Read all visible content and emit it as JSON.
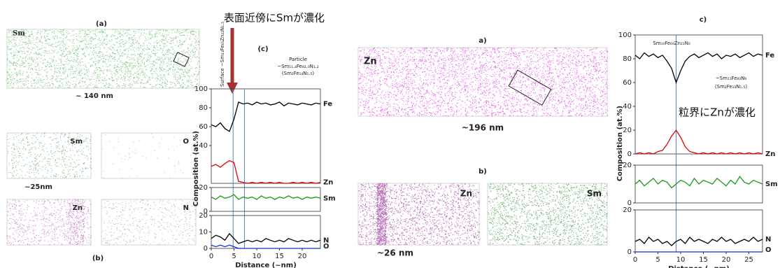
{
  "figure_left": {
    "map_label": "Sm",
    "map_panel": "(a)",
    "map_size": "~ 140 nm",
    "maps": [
      "Sm",
      "O",
      "Zn",
      "N"
    ],
    "maps_size": "~25nm",
    "maps_panel": "(b)",
    "chart_panel": "(c)",
    "surface_note": "Surface ~Sm₁₁Fe₆₅Zn₂₂N₁.₅",
    "particle_title": "Particle",
    "particle_formula": "~Sm₁₁.₄Fe₈₂.₀N₁.₂",
    "particle_ratio": "(Sm₂Fe₁₄N₁.₅)",
    "callout": "表面近傍にSmが濃化"
  },
  "figure_right": {
    "map_label": "Zn",
    "map_panel": "a)",
    "map_size": "~196 nm",
    "maps": [
      "Zn",
      "Sm"
    ],
    "maps_size": "~26 nm",
    "maps_panel": "b)",
    "chart_panel": "c)",
    "gb_formula": "Sm₁₀Fe₆₉Zn₂₁N₀",
    "matrix_formula": "~Sm₁₁Fe₈₃N₆",
    "matrix_ratio": "(Sm₂Fe₁₃N₁.₅)",
    "callout": "粒界にZnが濃化"
  },
  "chart_data": [
    {
      "type": "line",
      "xlim": [
        0,
        24
      ],
      "ylim": [
        0,
        100
      ],
      "yticks": [
        40,
        60,
        80,
        100
      ],
      "markers": [
        4.8,
        7.3
      ],
      "x": [
        0,
        1,
        2,
        3,
        4,
        5,
        6,
        7,
        8,
        9,
        10,
        11,
        12,
        13,
        14,
        15,
        16,
        17,
        18,
        19,
        20,
        21,
        22,
        23,
        24
      ],
      "series": [
        {
          "name": "Fe",
          "color": "#000000",
          "values": [
            62,
            60,
            64,
            58,
            55,
            68,
            86,
            84,
            85,
            83,
            86,
            84,
            85,
            83,
            84,
            86,
            82,
            85,
            84,
            83,
            85,
            84,
            83,
            85,
            84
          ]
        },
        {
          "name": "Zn",
          "color": "#e00000",
          "values": [
            18,
            20,
            17,
            21,
            24,
            22,
            2,
            1,
            0,
            1,
            0,
            1,
            0,
            1,
            0,
            1,
            0,
            0,
            1,
            0,
            1,
            0,
            1,
            0,
            1
          ]
        }
      ]
    },
    {
      "type": "line",
      "xlim": [
        0,
        24
      ],
      "ylim": [
        0,
        20
      ],
      "yticks": [
        0,
        20
      ],
      "ylabel": "Composition (at.%)",
      "x": [
        0,
        1,
        2,
        3,
        4,
        5,
        6,
        7,
        8,
        9,
        10,
        11,
        12,
        13,
        14,
        15,
        16,
        17,
        18,
        19,
        20,
        21,
        22,
        23,
        24
      ],
      "series": [
        {
          "name": "Sm",
          "color": "#1a9a1a",
          "values": [
            12,
            10,
            13,
            11,
            12,
            14,
            10,
            12,
            11,
            12,
            10,
            13,
            11,
            12,
            10,
            12,
            11,
            13,
            11,
            12,
            10,
            12,
            11,
            12,
            11
          ]
        }
      ]
    },
    {
      "type": "line",
      "xlim": [
        0,
        24
      ],
      "ylim": [
        0,
        20
      ],
      "yticks": [
        0,
        10,
        20
      ],
      "xticks": [
        0,
        5,
        10,
        15,
        20
      ],
      "xlabel": "Distance (~nm)",
      "x": [
        0,
        1,
        2,
        3,
        4,
        5,
        6,
        7,
        8,
        9,
        10,
        11,
        12,
        13,
        14,
        15,
        16,
        17,
        18,
        19,
        20,
        21,
        22,
        23,
        24
      ],
      "series": [
        {
          "name": "N",
          "color": "#000000",
          "values": [
            6,
            8,
            7,
            5,
            9,
            6,
            3,
            4,
            5,
            4,
            5,
            4,
            6,
            5,
            4,
            5,
            4,
            6,
            5,
            4,
            5,
            4,
            5,
            4,
            5
          ]
        },
        {
          "name": "O",
          "color": "#1030d0",
          "values": [
            2,
            1,
            2,
            1,
            2,
            1,
            0,
            0,
            0,
            0,
            0,
            0,
            0,
            0,
            0,
            0,
            0,
            0,
            0,
            0,
            0,
            0,
            0,
            0,
            0
          ]
        }
      ]
    },
    {
      "type": "line",
      "xlim": [
        0,
        28
      ],
      "ylim": [
        0,
        100
      ],
      "yticks": [
        0,
        20,
        40,
        60,
        80,
        100
      ],
      "markers": [
        9
      ],
      "x": [
        0,
        1,
        2,
        3,
        4,
        5,
        6,
        7,
        8,
        9,
        10,
        11,
        12,
        13,
        14,
        15,
        16,
        17,
        18,
        19,
        20,
        21,
        22,
        23,
        24,
        25,
        26,
        27,
        28
      ],
      "series": [
        {
          "name": "Fe",
          "color": "#000000",
          "values": [
            83,
            80,
            85,
            82,
            84,
            81,
            83,
            78,
            72,
            60,
            70,
            78,
            82,
            84,
            81,
            83,
            85,
            82,
            84,
            80,
            83,
            82,
            84,
            81,
            83,
            85,
            82,
            84,
            83
          ]
        },
        {
          "name": "Zn",
          "color": "#e00000",
          "values": [
            0,
            1,
            0,
            1,
            0,
            2,
            3,
            8,
            15,
            20,
            14,
            6,
            2,
            1,
            0,
            1,
            0,
            1,
            0,
            1,
            0,
            1,
            0,
            1,
            0,
            1,
            0,
            1,
            0
          ]
        }
      ]
    },
    {
      "type": "line",
      "xlim": [
        0,
        28
      ],
      "ylim": [
        0,
        20
      ],
      "yticks": [
        0,
        20
      ],
      "ylabel": "Composition (at.%)",
      "x": [
        0,
        1,
        2,
        3,
        4,
        5,
        6,
        7,
        8,
        9,
        10,
        11,
        12,
        13,
        14,
        15,
        16,
        17,
        18,
        19,
        20,
        21,
        22,
        23,
        24,
        25,
        26,
        27,
        28
      ],
      "series": [
        {
          "name": "Sm",
          "color": "#1a9a1a",
          "values": [
            10,
            12,
            9,
            11,
            13,
            10,
            12,
            11,
            8,
            10,
            12,
            11,
            9,
            13,
            10,
            12,
            11,
            10,
            13,
            11,
            9,
            12,
            10,
            14,
            11,
            10,
            12,
            11,
            10
          ]
        }
      ]
    },
    {
      "type": "line",
      "xlim": [
        0,
        28
      ],
      "ylim": [
        0,
        20
      ],
      "yticks": [
        0,
        20
      ],
      "xticks": [
        0,
        5,
        10,
        15,
        20,
        25
      ],
      "xlabel": "Distance (~nm)",
      "x": [
        0,
        1,
        2,
        3,
        4,
        5,
        6,
        7,
        8,
        9,
        10,
        11,
        12,
        13,
        14,
        15,
        16,
        17,
        18,
        19,
        20,
        21,
        22,
        23,
        24,
        25,
        26,
        27,
        28
      ],
      "series": [
        {
          "name": "N",
          "color": "#000000",
          "values": [
            5,
            6,
            4,
            7,
            5,
            6,
            4,
            5,
            3,
            5,
            6,
            4,
            7,
            5,
            6,
            5,
            4,
            6,
            5,
            7,
            5,
            6,
            4,
            5,
            6,
            5,
            7,
            5,
            6
          ]
        },
        {
          "name": "O",
          "color": "#1030d0",
          "values": [
            0,
            0,
            0,
            0,
            0,
            0,
            0,
            0,
            0,
            0,
            0,
            0,
            0,
            0,
            0,
            0,
            0,
            0,
            0,
            0,
            0,
            0,
            0,
            0,
            0,
            0,
            0,
            0,
            0
          ]
        }
      ]
    }
  ]
}
